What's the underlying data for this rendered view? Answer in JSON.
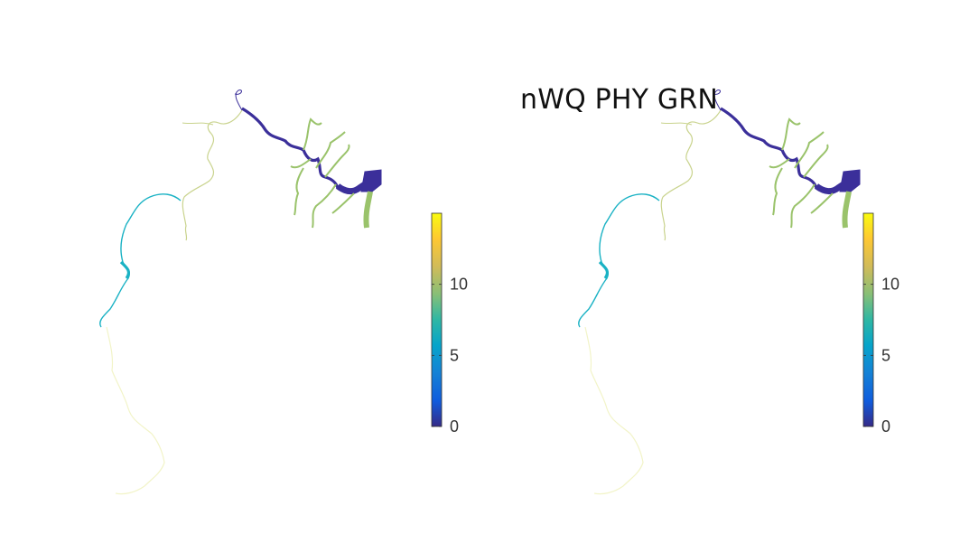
{
  "title": "nWQ PHY GRN",
  "colorbar": {
    "colormap": "parula",
    "range": [
      0,
      15
    ],
    "ticks": [
      {
        "value": 0,
        "label": "0"
      },
      {
        "value": 5,
        "label": "5"
      },
      {
        "value": 10,
        "label": "10"
      }
    ]
  },
  "map_colors": {
    "main_channel": "#3b2f9a",
    "tributaries": "#9ac36b",
    "upper_river": "#c9d38d",
    "mid_river": "#1ab2c4",
    "lower_river": "#f2f4c8"
  }
}
